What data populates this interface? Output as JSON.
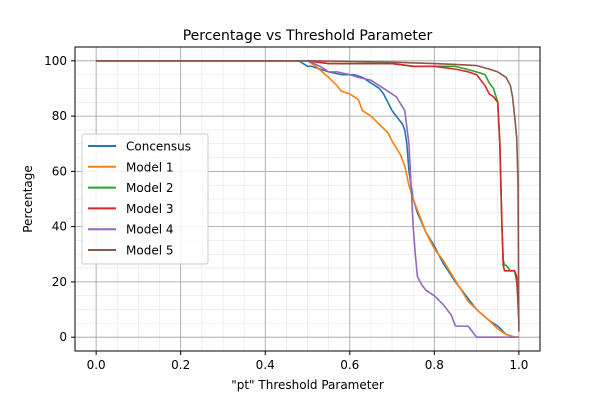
{
  "chart_data": {
    "type": "line",
    "title": "Percentage vs Threshold Parameter",
    "xlabel": "\"pt\" Threshold Parameter",
    "ylabel": "Percentage",
    "xlim": [
      -0.05,
      1.05
    ],
    "ylim": [
      -5,
      105
    ],
    "xticks": [
      0.0,
      0.2,
      0.4,
      0.6,
      0.8,
      1.0
    ],
    "xtick_labels": [
      "0.0",
      "0.2",
      "0.4",
      "0.6",
      "0.8",
      "1.0"
    ],
    "yticks": [
      0,
      20,
      40,
      60,
      80,
      100
    ],
    "ytick_labels": [
      "0",
      "20",
      "40",
      "60",
      "80",
      "100"
    ],
    "grid": true,
    "minor_grid": true,
    "legend_position": "center-left",
    "series": [
      {
        "name": "Concensus",
        "color": "#1f77b4",
        "x": [
          0.0,
          0.48,
          0.49,
          0.5,
          0.51,
          0.53,
          0.55,
          0.58,
          0.61,
          0.63,
          0.65,
          0.67,
          0.68,
          0.69,
          0.7,
          0.71,
          0.72,
          0.725,
          0.73,
          0.735,
          0.74,
          0.745,
          0.75,
          0.76,
          0.78,
          0.8,
          0.82,
          0.85,
          0.88,
          0.9,
          0.93,
          0.95,
          0.97,
          0.99,
          1.0
        ],
        "y": [
          100,
          100,
          99,
          98,
          98,
          97,
          96,
          95,
          95,
          94,
          92,
          90,
          88,
          85,
          82,
          80,
          78,
          77,
          75,
          70,
          60,
          55,
          50,
          45,
          38,
          33,
          27,
          20,
          14,
          10,
          6,
          4,
          1,
          0,
          0
        ]
      },
      {
        "name": "Model 1",
        "color": "#ff7f0e",
        "x": [
          0.0,
          0.5,
          0.52,
          0.55,
          0.57,
          0.58,
          0.6,
          0.62,
          0.63,
          0.65,
          0.67,
          0.69,
          0.7,
          0.72,
          0.73,
          0.74,
          0.75,
          0.76,
          0.78,
          0.8,
          0.82,
          0.84,
          0.86,
          0.88,
          0.9,
          0.93,
          0.95,
          0.97,
          0.99,
          1.0
        ],
        "y": [
          100,
          100,
          98,
          94,
          91,
          89,
          88,
          86,
          82,
          80,
          77,
          74,
          71,
          66,
          62,
          55,
          50,
          46,
          38,
          32,
          28,
          23,
          18,
          13,
          10,
          6,
          3,
          1,
          0,
          0
        ]
      },
      {
        "name": "Model 2",
        "color": "#2ca02c",
        "x": [
          0.0,
          0.5,
          0.55,
          0.6,
          0.65,
          0.7,
          0.75,
          0.8,
          0.85,
          0.9,
          0.92,
          0.93,
          0.94,
          0.95,
          0.955,
          0.96,
          0.963,
          0.966,
          0.97,
          0.98,
          0.99,
          0.995,
          1.0
        ],
        "y": [
          100,
          100,
          99,
          99,
          99,
          99,
          98,
          98,
          98,
          96,
          95,
          92,
          90,
          85,
          70,
          40,
          28,
          26,
          26,
          24,
          24,
          20,
          10
        ]
      },
      {
        "name": "Model 3",
        "color": "#d62728",
        "x": [
          0.0,
          0.5,
          0.55,
          0.6,
          0.65,
          0.7,
          0.75,
          0.8,
          0.85,
          0.88,
          0.9,
          0.92,
          0.93,
          0.94,
          0.95,
          0.955,
          0.96,
          0.963,
          0.966,
          0.97,
          0.98,
          0.99,
          0.995,
          1.0
        ],
        "y": [
          100,
          100,
          99,
          99,
          99,
          99,
          98,
          98,
          97,
          96,
          95,
          91,
          88,
          87,
          85,
          70,
          40,
          26,
          24,
          24,
          24,
          24,
          22,
          5
        ]
      },
      {
        "name": "Model 4",
        "color": "#9467bd",
        "x": [
          0.0,
          0.5,
          0.53,
          0.55,
          0.57,
          0.6,
          0.62,
          0.65,
          0.67,
          0.69,
          0.71,
          0.73,
          0.74,
          0.745,
          0.75,
          0.755,
          0.76,
          0.77,
          0.78,
          0.8,
          0.82,
          0.84,
          0.85,
          0.87,
          0.88,
          0.9,
          0.95,
          1.0
        ],
        "y": [
          100,
          100,
          98,
          96,
          96,
          95,
          94,
          93,
          91,
          89,
          87,
          82,
          70,
          55,
          40,
          30,
          22,
          19,
          17,
          15,
          12,
          8,
          4,
          4,
          4,
          0,
          0,
          0
        ]
      },
      {
        "name": "Model 5",
        "color": "#8c564b",
        "x": [
          0.0,
          0.5,
          0.6,
          0.7,
          0.8,
          0.85,
          0.9,
          0.93,
          0.95,
          0.97,
          0.98,
          0.985,
          0.99,
          0.995,
          0.998,
          1.0
        ],
        "y": [
          100,
          100,
          99.8,
          99.5,
          99,
          98.7,
          98.3,
          97,
          96,
          94,
          91,
          87,
          80,
          72,
          55,
          2
        ]
      }
    ]
  }
}
